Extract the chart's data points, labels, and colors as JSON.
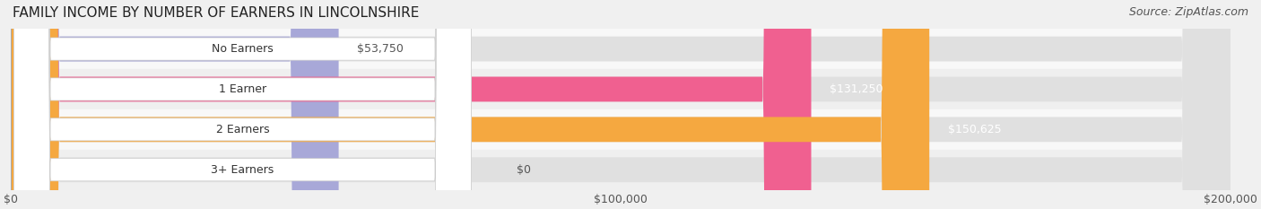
{
  "title": "FAMILY INCOME BY NUMBER OF EARNERS IN LINCOLNSHIRE",
  "source": "Source: ZipAtlas.com",
  "categories": [
    "No Earners",
    "1 Earner",
    "2 Earners",
    "3+ Earners"
  ],
  "values": [
    53750,
    131250,
    150625,
    0
  ],
  "bar_colors": [
    "#a8a8d8",
    "#f06090",
    "#f5a840",
    "#f0a0a8"
  ],
  "label_colors": [
    "#555555",
    "#ffffff",
    "#ffffff",
    "#555555"
  ],
  "bar_bg_color": "#e8e8e8",
  "row_bg_colors": [
    "#f5f5f5",
    "#f0f0f0",
    "#f5f5f5",
    "#f0f0f0"
  ],
  "xlim": [
    0,
    200000
  ],
  "xticks": [
    0,
    100000,
    200000
  ],
  "xtick_labels": [
    "$0",
    "$100,000",
    "$200,000"
  ],
  "value_labels": [
    "$53,750",
    "$131,250",
    "$150,625",
    "$0"
  ],
  "background_color": "#f0f0f0",
  "title_fontsize": 11,
  "source_fontsize": 9,
  "label_fontsize": 9,
  "tick_fontsize": 9
}
